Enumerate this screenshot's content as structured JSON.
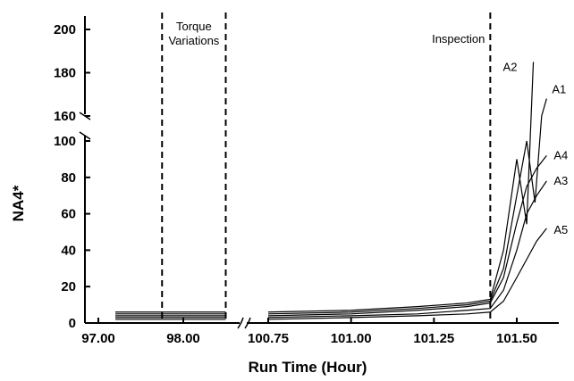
{
  "chart_data": {
    "type": "line",
    "title": "",
    "xlabel": "Run Time (Hour)",
    "ylabel": "NA4*",
    "x_scale": "broken (97.00–98.00 segment, then 100.75–101.60 segment)",
    "y_scale": "broken (0–100 lower segment, 160–200 upper segment)",
    "grid": false,
    "x_ticks": [
      "97.00",
      "98.00",
      "100.75",
      "101.00",
      "101.25",
      "101.50"
    ],
    "y_ticks": [
      "0",
      "20",
      "40",
      "60",
      "80",
      "100",
      "160",
      "180",
      "200"
    ],
    "annotations": [
      {
        "text": "Torque\nVariations",
        "x_start": 97.75,
        "x_end": 98.5
      },
      {
        "text": "Inspection",
        "x": 101.42
      }
    ],
    "series": [
      {
        "name": "A1",
        "x": [
          97.2,
          97.6,
          98.0,
          98.5,
          100.75,
          101.0,
          101.2,
          101.35,
          101.42,
          101.46,
          101.5,
          101.53,
          101.555,
          101.575,
          101.59
        ],
        "y": [
          5,
          5,
          5,
          5,
          5,
          6,
          8,
          10,
          12,
          30,
          70,
          100,
          120,
          160,
          168
        ]
      },
      {
        "name": "A2",
        "x": [
          97.2,
          97.6,
          98.0,
          98.5,
          100.75,
          101.0,
          101.2,
          101.35,
          101.42,
          101.46,
          101.5,
          101.53,
          101.55
        ],
        "y": [
          6,
          6,
          6,
          6,
          6,
          7,
          9,
          11,
          13,
          40,
          90,
          110,
          185
        ]
      },
      {
        "name": "A4",
        "x": [
          97.2,
          97.6,
          98.0,
          98.5,
          100.75,
          101.0,
          101.2,
          101.35,
          101.42,
          101.46,
          101.5,
          101.53,
          101.56,
          101.59
        ],
        "y": [
          4,
          4,
          4,
          4,
          4,
          5,
          7,
          9,
          11,
          25,
          55,
          75,
          85,
          92
        ]
      },
      {
        "name": "A3",
        "x": [
          97.2,
          97.6,
          98.0,
          98.5,
          100.75,
          101.0,
          101.2,
          101.35,
          101.42,
          101.46,
          101.5,
          101.53,
          101.56,
          101.59
        ],
        "y": [
          3,
          3,
          3,
          3,
          3,
          4,
          5,
          7,
          8,
          18,
          40,
          60,
          70,
          78
        ]
      },
      {
        "name": "A5",
        "x": [
          97.2,
          97.6,
          98.0,
          98.5,
          100.75,
          101.0,
          101.2,
          101.35,
          101.42,
          101.46,
          101.5,
          101.53,
          101.56,
          101.59
        ],
        "y": [
          2,
          2,
          2,
          2,
          2,
          3,
          4,
          5,
          6,
          12,
          25,
          35,
          45,
          52
        ]
      }
    ],
    "colors": {
      "axis": "#000000",
      "series": "#000000",
      "background": "#ffffff"
    }
  }
}
